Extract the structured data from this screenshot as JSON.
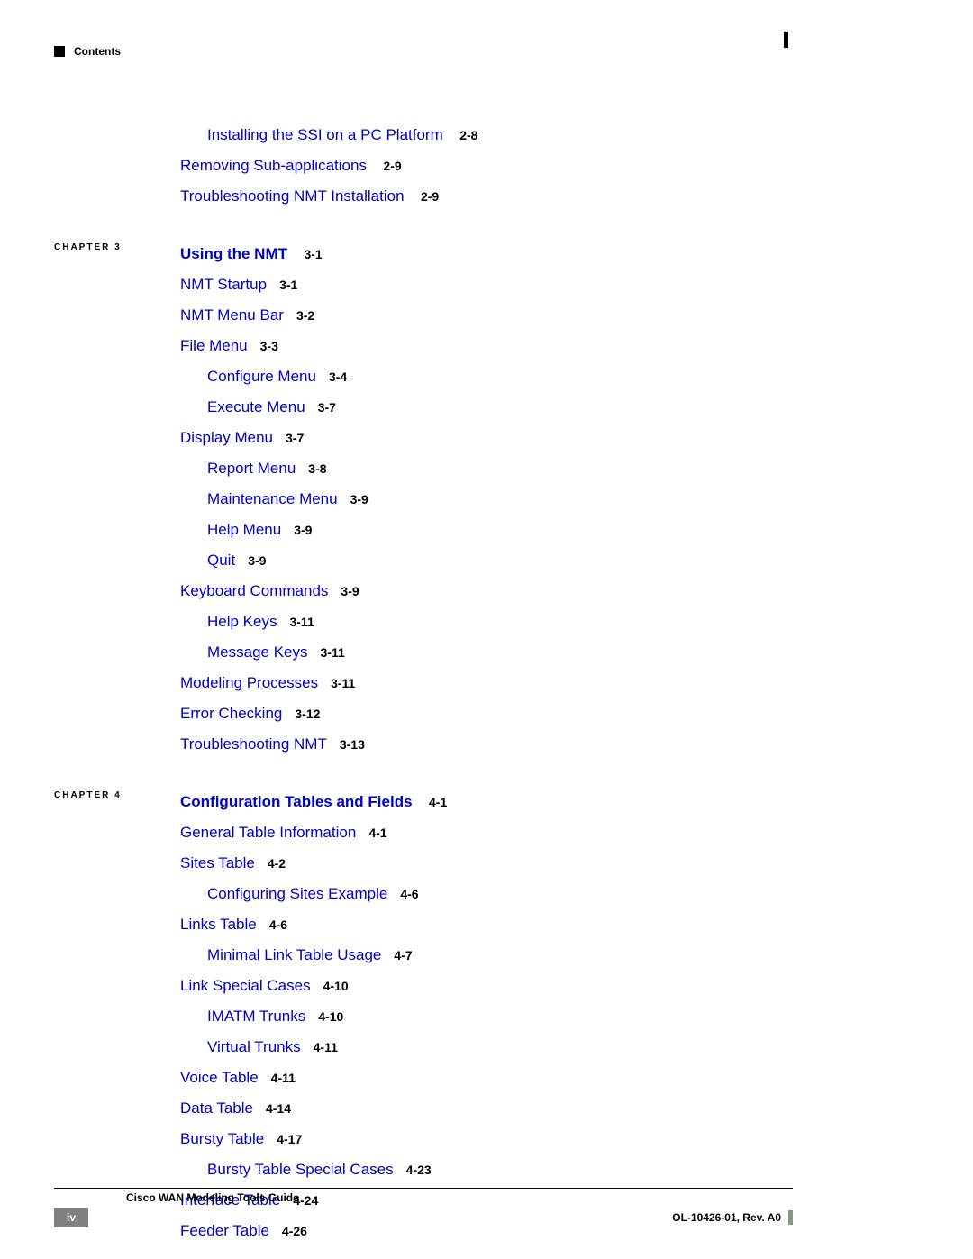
{
  "colors": {
    "link": "#0000cc",
    "text": "#000000",
    "page_badge_bg": "#808080",
    "page_badge_fg": "#ffffff",
    "footer_marker": "#7A9E7E",
    "background": "#ffffff"
  },
  "typography": {
    "link_fontsize": 17,
    "pageref_fontsize": 14,
    "header_fontsize": 12,
    "chapter_label_fontsize": 10,
    "footer_fontsize": 12
  },
  "header": {
    "label": "Contents"
  },
  "pre_section": [
    {
      "level": 1,
      "text": "Installing the SSI on a PC Platform",
      "ref": "2-8"
    },
    {
      "level": 0,
      "text": "Removing Sub-applications",
      "ref": "2-9"
    },
    {
      "level": 0,
      "text": "Troubleshooting NMT Installation",
      "ref": "2-9"
    }
  ],
  "chapter3": {
    "label": "CHAPTER 3",
    "title": "Using the NMT",
    "title_ref": "3-1",
    "items": [
      {
        "level": 0,
        "text": "NMT Startup",
        "ref": "3-1"
      },
      {
        "level": 0,
        "text": "NMT Menu Bar",
        "ref": "3-2"
      },
      {
        "level": 0,
        "text": "File Menu",
        "ref": "3-3"
      },
      {
        "level": 1,
        "text": "Configure Menu",
        "ref": "3-4"
      },
      {
        "level": 1,
        "text": "Execute Menu",
        "ref": "3-7"
      },
      {
        "level": 0,
        "text": "Display Menu",
        "ref": "3-7"
      },
      {
        "level": 1,
        "text": "Report Menu",
        "ref": "3-8"
      },
      {
        "level": 1,
        "text": "Maintenance Menu",
        "ref": "3-9"
      },
      {
        "level": 1,
        "text": "Help Menu",
        "ref": "3-9"
      },
      {
        "level": 1,
        "text": "Quit",
        "ref": "3-9"
      },
      {
        "level": 0,
        "text": "Keyboard Commands",
        "ref": "3-9"
      },
      {
        "level": 1,
        "text": "Help Keys",
        "ref": "3-11"
      },
      {
        "level": 1,
        "text": "Message Keys",
        "ref": "3-11"
      },
      {
        "level": 0,
        "text": "Modeling Processes",
        "ref": "3-11"
      },
      {
        "level": 0,
        "text": "Error Checking",
        "ref": "3-12"
      },
      {
        "level": 0,
        "text": "Troubleshooting NMT",
        "ref": "3-13"
      }
    ]
  },
  "chapter4": {
    "label": "CHAPTER 4",
    "title": "Configuration Tables and Fields",
    "title_ref": "4-1",
    "items": [
      {
        "level": 0,
        "text": "General Table Information",
        "ref": "4-1"
      },
      {
        "level": 0,
        "text": "Sites Table",
        "ref": "4-2"
      },
      {
        "level": 1,
        "text": "Configuring Sites Example",
        "ref": "4-6"
      },
      {
        "level": 0,
        "text": "Links Table",
        "ref": "4-6"
      },
      {
        "level": 1,
        "text": "Minimal Link Table Usage",
        "ref": "4-7"
      },
      {
        "level": 0,
        "text": "Link Special Cases",
        "ref": "4-10"
      },
      {
        "level": 1,
        "text": "IMATM Trunks",
        "ref": "4-10"
      },
      {
        "level": 1,
        "text": "Virtual Trunks",
        "ref": "4-11"
      },
      {
        "level": 0,
        "text": "Voice Table",
        "ref": "4-11"
      },
      {
        "level": 0,
        "text": "Data Table",
        "ref": "4-14"
      },
      {
        "level": 0,
        "text": "Bursty Table",
        "ref": "4-17"
      },
      {
        "level": 1,
        "text": "Bursty Table Special Cases",
        "ref": "4-23"
      },
      {
        "level": 0,
        "text": "Interface Table",
        "ref": "4-24"
      },
      {
        "level": 0,
        "text": "Feeder Table",
        "ref": "4-26"
      }
    ]
  },
  "footer": {
    "title": "Cisco WAN Modeling Tools Guide",
    "page_number": "iv",
    "doc_ref": "OL-10426-01, Rev. A0"
  }
}
